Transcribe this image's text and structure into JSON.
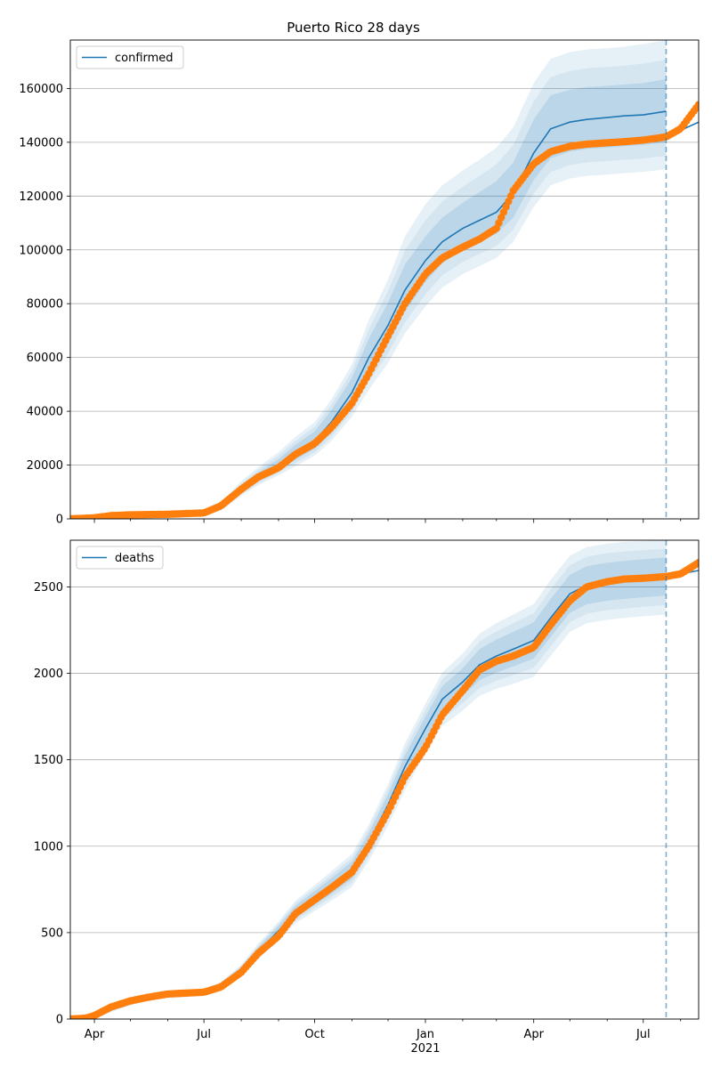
{
  "title": "Puerto Rico 28 days",
  "colors": {
    "model": "#1f77b4",
    "observed": "#ff7f0e",
    "grid": "#b0b0b0",
    "forecast_line": "#1f77b4"
  },
  "chart_data": [
    {
      "type": "line",
      "name": "confirmed-panel",
      "title": "Puerto Rico 28 days",
      "legend": "top-left",
      "legend_label": "confirmed",
      "grid": "horizontal",
      "x_range": [
        "2020-03-12",
        "2021-08-16"
      ],
      "ylim": [
        0,
        178000
      ],
      "yticks": [
        0,
        20000,
        40000,
        60000,
        80000,
        100000,
        120000,
        140000,
        160000
      ],
      "forecast_start": "2021-07-20",
      "model": {
        "x": [
          "2020-03-12",
          "2020-04-01",
          "2020-05-01",
          "2020-06-01",
          "2020-07-01",
          "2020-07-15",
          "2020-08-01",
          "2020-08-15",
          "2020-09-01",
          "2020-09-15",
          "2020-10-01",
          "2020-10-15",
          "2020-11-01",
          "2020-11-15",
          "2020-12-01",
          "2020-12-15",
          "2021-01-01",
          "2021-01-15",
          "2021-02-01",
          "2021-02-15",
          "2021-03-01",
          "2021-03-15",
          "2021-04-01",
          "2021-04-15",
          "2021-05-01",
          "2021-05-15",
          "2021-06-01",
          "2021-06-15",
          "2021-07-01",
          "2021-07-20"
        ],
        "y": [
          0,
          300,
          900,
          1200,
          1800,
          4500,
          11000,
          15500,
          20000,
          24500,
          29000,
          36000,
          47000,
          60000,
          72000,
          85000,
          96000,
          103000,
          108000,
          111000,
          114000,
          121000,
          136000,
          145000,
          147500,
          148500,
          149200,
          149800,
          150200,
          151500
        ],
        "band50": [
          [
            0,
            0
          ],
          [
            200,
            400
          ],
          [
            700,
            1100
          ],
          [
            1000,
            1400
          ],
          [
            1500,
            2100
          ],
          [
            3800,
            5200
          ],
          [
            9800,
            12500
          ],
          [
            14000,
            17200
          ],
          [
            18200,
            22200
          ],
          [
            22000,
            27500
          ],
          [
            26000,
            32500
          ],
          [
            32000,
            40500
          ],
          [
            42000,
            52500
          ],
          [
            54000,
            67000
          ],
          [
            65000,
            80500
          ],
          [
            77000,
            94500
          ],
          [
            88000,
            105000
          ],
          [
            95000,
            112000
          ],
          [
            100000,
            117500
          ],
          [
            103000,
            121500
          ],
          [
            106000,
            125500
          ],
          [
            112000,
            132500
          ],
          [
            126000,
            148500
          ],
          [
            134000,
            157500
          ],
          [
            136500,
            159500
          ],
          [
            137500,
            160500
          ],
          [
            138000,
            161000
          ],
          [
            138500,
            161500
          ],
          [
            139000,
            162000
          ],
          [
            140000,
            163500
          ]
        ],
        "band90": [
          [
            0,
            0
          ],
          [
            100,
            600
          ],
          [
            500,
            1400
          ],
          [
            800,
            1700
          ],
          [
            1200,
            2500
          ],
          [
            3000,
            6200
          ],
          [
            8500,
            14000
          ],
          [
            12500,
            19200
          ],
          [
            16200,
            24800
          ],
          [
            19500,
            30500
          ],
          [
            23500,
            36000
          ],
          [
            29000,
            44500
          ],
          [
            38000,
            57500
          ],
          [
            48000,
            74000
          ],
          [
            58000,
            89000
          ],
          [
            69000,
            105000
          ],
          [
            79000,
            117000
          ],
          [
            86000,
            124000
          ],
          [
            91000,
            129500
          ],
          [
            94000,
            133500
          ],
          [
            97000,
            138000
          ],
          [
            103000,
            145500
          ],
          [
            116000,
            162000
          ],
          [
            124000,
            171000
          ],
          [
            126500,
            173500
          ],
          [
            127500,
            174500
          ],
          [
            128000,
            175000
          ],
          [
            128500,
            175500
          ],
          [
            129000,
            176500
          ],
          [
            130000,
            178000
          ]
        ]
      },
      "forecast": {
        "x": [
          "2021-07-20",
          "2021-08-16"
        ],
        "y": [
          142000,
          147500
        ]
      },
      "observed": {
        "x": [
          "2020-03-12",
          "2020-04-01",
          "2020-04-15",
          "2020-05-01",
          "2020-06-01",
          "2020-07-01",
          "2020-07-15",
          "2020-08-01",
          "2020-08-15",
          "2020-09-01",
          "2020-09-15",
          "2020-10-01",
          "2020-10-15",
          "2020-11-01",
          "2020-11-15",
          "2020-12-01",
          "2020-12-15",
          "2021-01-01",
          "2021-01-15",
          "2021-02-01",
          "2021-02-15",
          "2021-03-01",
          "2021-03-15",
          "2021-04-01",
          "2021-04-15",
          "2021-05-01",
          "2021-05-15",
          "2021-06-01",
          "2021-06-15",
          "2021-07-01",
          "2021-07-20",
          "2021-08-01",
          "2021-08-16"
        ],
        "y": [
          0,
          400,
          1200,
          1500,
          1700,
          2200,
          4800,
          11000,
          15500,
          19000,
          24000,
          28000,
          34000,
          43000,
          54000,
          68000,
          80000,
          91000,
          97000,
          101000,
          104000,
          108000,
          122000,
          132000,
          136500,
          138500,
          139300,
          139800,
          140200,
          140800,
          142000,
          145000,
          154000
        ]
      }
    },
    {
      "type": "line",
      "name": "deaths-panel",
      "legend": "top-left",
      "legend_label": "deaths",
      "grid": "horizontal",
      "x_range": [
        "2020-03-12",
        "2021-08-16"
      ],
      "ylim": [
        0,
        2770
      ],
      "yticks": [
        0,
        500,
        1000,
        1500,
        2000,
        2500
      ],
      "forecast_start": "2021-07-20",
      "model": {
        "x": [
          "2020-03-12",
          "2020-04-01",
          "2020-04-15",
          "2020-05-01",
          "2020-05-15",
          "2020-06-01",
          "2020-07-01",
          "2020-07-15",
          "2020-08-01",
          "2020-08-15",
          "2020-09-01",
          "2020-09-15",
          "2020-10-01",
          "2020-10-15",
          "2020-11-01",
          "2020-11-15",
          "2020-12-01",
          "2020-12-15",
          "2021-01-01",
          "2021-01-15",
          "2021-02-01",
          "2021-02-15",
          "2021-03-01",
          "2021-03-15",
          "2021-04-01",
          "2021-04-15",
          "2021-05-01",
          "2021-05-15",
          "2021-06-01",
          "2021-06-15",
          "2021-07-01",
          "2021-07-20"
        ],
        "y": [
          0,
          15,
          60,
          100,
          125,
          140,
          155,
          190,
          280,
          390,
          510,
          620,
          700,
          770,
          860,
          1020,
          1240,
          1460,
          1680,
          1850,
          1950,
          2050,
          2100,
          2140,
          2190,
          2320,
          2460,
          2510,
          2530,
          2540,
          2550,
          2560
        ],
        "band50": [
          [
            0,
            0
          ],
          [
            10,
            20
          ],
          [
            50,
            70
          ],
          [
            90,
            110
          ],
          [
            115,
            135
          ],
          [
            130,
            150
          ],
          [
            145,
            165
          ],
          [
            175,
            205
          ],
          [
            260,
            300
          ],
          [
            365,
            415
          ],
          [
            480,
            540
          ],
          [
            585,
            655
          ],
          [
            660,
            740
          ],
          [
            725,
            815
          ],
          [
            810,
            910
          ],
          [
            965,
            1075
          ],
          [
            1180,
            1300
          ],
          [
            1395,
            1525
          ],
          [
            1610,
            1750
          ],
          [
            1775,
            1925
          ],
          [
            1870,
            2030
          ],
          [
            1960,
            2140
          ],
          [
            2005,
            2195
          ],
          [
            2040,
            2240
          ],
          [
            2085,
            2295
          ],
          [
            2210,
            2430
          ],
          [
            2350,
            2570
          ],
          [
            2400,
            2620
          ],
          [
            2420,
            2640
          ],
          [
            2430,
            2650
          ],
          [
            2440,
            2660
          ],
          [
            2450,
            2670
          ]
        ],
        "band90": [
          [
            0,
            0
          ],
          [
            5,
            30
          ],
          [
            40,
            80
          ],
          [
            80,
            120
          ],
          [
            105,
            145
          ],
          [
            120,
            160
          ],
          [
            135,
            175
          ],
          [
            165,
            215
          ],
          [
            245,
            315
          ],
          [
            345,
            435
          ],
          [
            455,
            565
          ],
          [
            555,
            685
          ],
          [
            625,
            775
          ],
          [
            685,
            855
          ],
          [
            765,
            955
          ],
          [
            915,
            1125
          ],
          [
            1120,
            1360
          ],
          [
            1325,
            1595
          ],
          [
            1535,
            1825
          ],
          [
            1695,
            2005
          ],
          [
            1785,
            2115
          ],
          [
            1870,
            2230
          ],
          [
            1910,
            2290
          ],
          [
            1940,
            2340
          ],
          [
            1980,
            2400
          ],
          [
            2100,
            2540
          ],
          [
            2240,
            2680
          ],
          [
            2290,
            2730
          ],
          [
            2310,
            2750
          ],
          [
            2320,
            2760
          ],
          [
            2330,
            2765
          ],
          [
            2340,
            2770
          ]
        ]
      },
      "forecast": {
        "x": [
          "2021-07-20",
          "2021-08-16"
        ],
        "y": [
          2560,
          2595
        ]
      },
      "observed": {
        "x": [
          "2020-03-12",
          "2020-03-25",
          "2020-04-01",
          "2020-04-15",
          "2020-05-01",
          "2020-05-15",
          "2020-06-01",
          "2020-07-01",
          "2020-07-15",
          "2020-08-01",
          "2020-08-15",
          "2020-09-01",
          "2020-09-15",
          "2020-10-01",
          "2020-10-15",
          "2020-11-01",
          "2020-11-15",
          "2020-12-01",
          "2020-12-15",
          "2021-01-01",
          "2021-01-15",
          "2021-02-01",
          "2021-02-15",
          "2021-03-01",
          "2021-03-15",
          "2021-04-01",
          "2021-04-15",
          "2021-05-01",
          "2021-05-15",
          "2021-06-01",
          "2021-06-15",
          "2021-07-01",
          "2021-07-20",
          "2021-08-01",
          "2021-08-16"
        ],
        "y": [
          0,
          5,
          20,
          70,
          105,
          125,
          145,
          155,
          185,
          270,
          380,
          480,
          610,
          690,
          760,
          850,
          1000,
          1200,
          1400,
          1570,
          1760,
          1900,
          2020,
          2070,
          2100,
          2150,
          2280,
          2420,
          2500,
          2530,
          2545,
          2550,
          2560,
          2575,
          2640
        ]
      }
    }
  ],
  "x_axis": {
    "ticks": [
      {
        "date": "2020-04-01",
        "label": "Apr"
      },
      {
        "date": "2020-07-01",
        "label": "Jul"
      },
      {
        "date": "2020-10-01",
        "label": "Oct"
      },
      {
        "date": "2021-01-01",
        "label": "Jan"
      },
      {
        "date": "2021-04-01",
        "label": "Apr"
      },
      {
        "date": "2021-07-01",
        "label": "Jul"
      }
    ],
    "year_label": "2021"
  }
}
